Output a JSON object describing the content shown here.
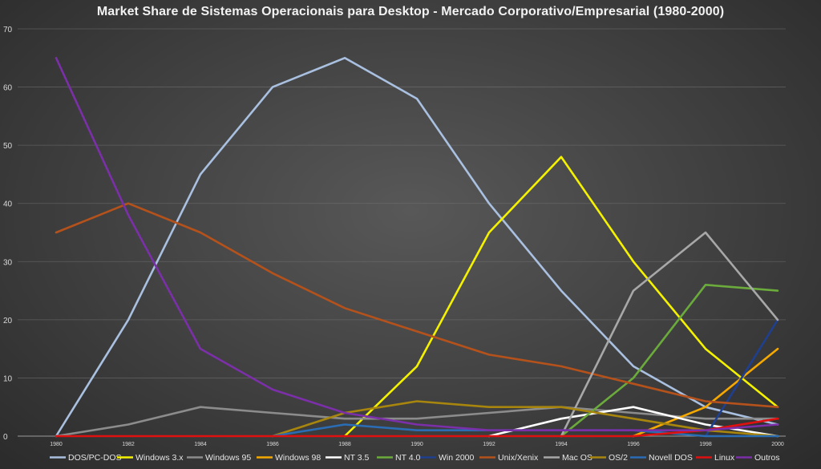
{
  "chart_data": {
    "type": "line",
    "title": "Market Share de Sistemas Operacionais para Desktop - Mercado Corporativo/Empresarial (1980-2000)",
    "xlabel": "",
    "ylabel": "",
    "ylim": [
      0,
      70
    ],
    "yticks": [
      "0",
      "10",
      "20",
      "30",
      "40",
      "50",
      "60",
      "70"
    ],
    "categories": [
      "1980",
      "1982",
      "1984",
      "1986",
      "1988",
      "1990",
      "1992",
      "1994",
      "1996",
      "1998",
      "2000"
    ],
    "grid": true,
    "legend_position": "bottom",
    "series": [
      {
        "name": "DOS/PC-DOS",
        "color": "#a9c0e0",
        "values": [
          0,
          20,
          45,
          60,
          65,
          58,
          40,
          25,
          12,
          5,
          2
        ]
      },
      {
        "name": "Windows 3.x",
        "color": "#f5f200",
        "values": [
          null,
          null,
          null,
          null,
          0,
          12,
          35,
          48,
          30,
          15,
          5
        ]
      },
      {
        "name": "Windows 95",
        "color": "#8c8c8c",
        "values": [
          0,
          2,
          5,
          4,
          3,
          3,
          4,
          5,
          4,
          3,
          3
        ]
      },
      {
        "name": "Windows 98",
        "color": "#f5a800",
        "values": [
          null,
          null,
          null,
          null,
          null,
          null,
          null,
          null,
          0,
          5,
          15
        ]
      },
      {
        "name": "NT 3.5",
        "color": "#ffffff",
        "values": [
          null,
          null,
          null,
          null,
          null,
          null,
          0,
          3,
          5,
          2,
          0
        ]
      },
      {
        "name": "NT 4.0",
        "color": "#6bab3c",
        "values": [
          null,
          null,
          null,
          null,
          null,
          null,
          null,
          0,
          10,
          26,
          25
        ]
      },
      {
        "name": "Win 2000",
        "color": "#1f3f8f",
        "values": [
          null,
          null,
          null,
          null,
          null,
          null,
          null,
          null,
          null,
          0,
          20
        ]
      },
      {
        "name": "Unix/Xenix",
        "color": "#b5521c",
        "values": [
          35,
          40,
          35,
          28,
          22,
          18,
          14,
          12,
          9,
          6,
          5
        ]
      },
      {
        "name": "Mac OS",
        "color": "#a8a8a8",
        "values": [
          null,
          null,
          null,
          null,
          null,
          null,
          null,
          0,
          25,
          35,
          20
        ]
      },
      {
        "name": "OS/2",
        "color": "#a8860e",
        "values": [
          null,
          null,
          null,
          0,
          4,
          6,
          5,
          5,
          3,
          1,
          0
        ]
      },
      {
        "name": "Novell DOS",
        "color": "#2a6db5",
        "values": [
          null,
          null,
          null,
          0,
          2,
          1,
          1,
          1,
          1,
          0,
          0
        ]
      },
      {
        "name": "Linux",
        "color": "#e01010",
        "values": [
          0,
          0,
          0,
          0,
          0,
          0,
          0,
          0,
          0,
          1,
          3
        ]
      },
      {
        "name": "Outros",
        "color": "#7b2fa8",
        "values": [
          65,
          38,
          15,
          8,
          4,
          2,
          1,
          1,
          1,
          1,
          2
        ]
      }
    ]
  }
}
